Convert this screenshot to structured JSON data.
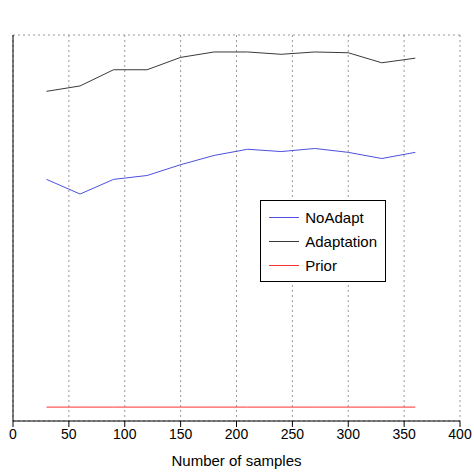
{
  "chart_data": {
    "type": "line",
    "xlabel": "Number of samples",
    "x": [
      30,
      60,
      90,
      120,
      150,
      180,
      210,
      240,
      270,
      300,
      330,
      360
    ],
    "series": [
      {
        "name": "NoAdapt",
        "color": "#4f4fe0",
        "values": [
          3.13,
          2.94,
          3.13,
          3.18,
          3.32,
          3.44,
          3.52,
          3.49,
          3.53,
          3.48,
          3.4,
          3.48
        ]
      },
      {
        "name": "Adaptation",
        "color": "#3a3a3a",
        "values": [
          4.27,
          4.34,
          4.55,
          4.55,
          4.71,
          4.78,
          4.78,
          4.75,
          4.78,
          4.77,
          4.64,
          4.7
        ]
      },
      {
        "name": "Prior",
        "color": "#ff3030",
        "values": [
          0.18,
          0.18,
          0.18,
          0.18,
          0.18,
          0.18,
          0.18,
          0.18,
          0.18,
          0.18,
          0.18,
          0.18
        ]
      }
    ],
    "xlim": [
      0,
      400
    ],
    "xticks": [
      0,
      50,
      100,
      150,
      200,
      250,
      300,
      350,
      400
    ],
    "ylim": [
      0,
      5
    ],
    "yticks": [
      0,
      1,
      2,
      3,
      4,
      5
    ],
    "grid": true,
    "legend": "right",
    "tick_labels": "x"
  }
}
